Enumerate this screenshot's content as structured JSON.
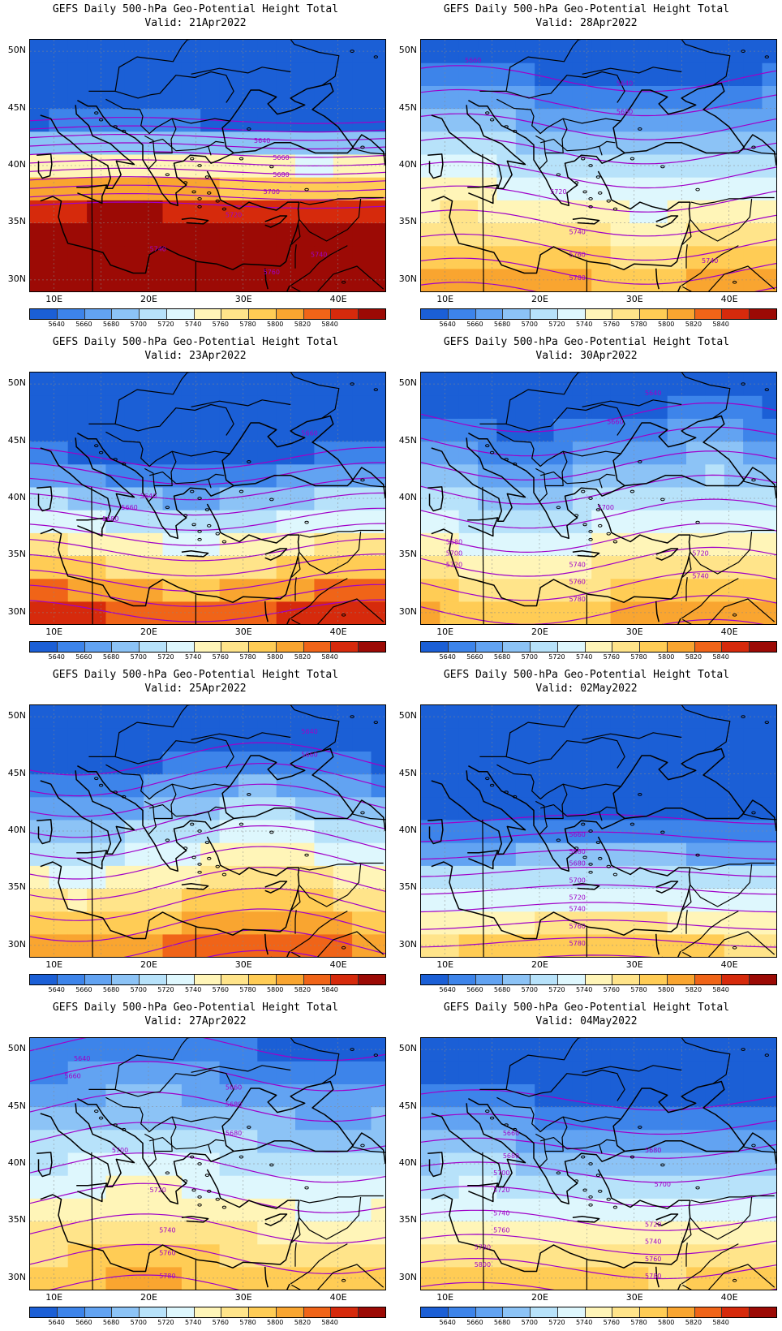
{
  "colors": {
    "bands": [
      "#1b5fd6",
      "#3d84ea",
      "#62a3f2",
      "#8cc3f6",
      "#b7e2fa",
      "#def7fd",
      "#fff5b8",
      "#ffe48a",
      "#ffcc55",
      "#f9a530",
      "#f06418",
      "#d62a0c",
      "#9c0a05"
    ],
    "contour": "#a000c8",
    "coast": "#000000"
  },
  "colorbar_labels": [
    "5640",
    "5660",
    "5680",
    "5700",
    "5720",
    "5740",
    "5760",
    "5780",
    "5800",
    "5820",
    "5840"
  ],
  "lat_labels": [
    "50N",
    "45N",
    "40N",
    "35N",
    "30N"
  ],
  "lon_labels": [
    "10E",
    "20E",
    "30E",
    "40E"
  ],
  "panels": [
    {
      "line1": "GEFS Daily 500-hPa Geo-Potential Height Total",
      "line2": "Valid: 21Apr2022",
      "field": {
        "base": 5625,
        "lat0": 44.5,
        "slope": 27,
        "wave": 1.2,
        "labels": [
          [
            "5640",
            32,
            42
          ],
          [
            "5660",
            34,
            40.5
          ],
          [
            "5680",
            34,
            39
          ],
          [
            "5700",
            33,
            37.5
          ],
          [
            "5720",
            29,
            35.5
          ],
          [
            "5740",
            21,
            32.5
          ],
          [
            "5760",
            33,
            30.5
          ],
          [
            "5740",
            38,
            32
          ]
        ]
      }
    },
    {
      "line1": "GEFS Daily 500-hPa Geo-Potential Height Total",
      "line2": "Valid: 28Apr2022",
      "field": {
        "base": 5660,
        "lat0": 45.5,
        "slope": 9.5,
        "wave": 1.8,
        "labels": [
          [
            "5660",
            13,
            49
          ],
          [
            "5640",
            29,
            47
          ],
          [
            "5680",
            29,
            44.5
          ],
          [
            "5720",
            22,
            37.5
          ],
          [
            "5740",
            24,
            34
          ],
          [
            "5760",
            24,
            32
          ],
          [
            "5780",
            24,
            30
          ],
          [
            "5740",
            38,
            31.5
          ]
        ]
      }
    },
    {
      "line1": "GEFS Daily 500-hPa Geo-Potential Height Total",
      "line2": "Valid: 23Apr2022",
      "field": {
        "base": 5640,
        "lat0": 43.5,
        "slope": 15,
        "wave": 2.4,
        "labels": [
          [
            "5660",
            37,
            45.5
          ],
          [
            "5640",
            20,
            40
          ],
          [
            "5660",
            18,
            39
          ],
          [
            "5680",
            16,
            38
          ]
        ]
      }
    },
    {
      "line1": "GEFS Daily 500-hPa Geo-Potential Height Total",
      "line2": "Valid: 30Apr2022",
      "field": {
        "base": 5655,
        "lat0": 45.5,
        "slope": 9.5,
        "wave": 2.0,
        "labels": [
          [
            "5640",
            32,
            49
          ],
          [
            "5660",
            28,
            46.5
          ],
          [
            "5700",
            27,
            39
          ],
          [
            "5680",
            11,
            36
          ],
          [
            "5700",
            11,
            35
          ],
          [
            "5720",
            11,
            34
          ],
          [
            "5740",
            24,
            34
          ],
          [
            "5760",
            24,
            32.5
          ],
          [
            "5780",
            24,
            31
          ],
          [
            "5720",
            37,
            35
          ],
          [
            "5740",
            37,
            33
          ]
        ]
      }
    },
    {
      "line1": "GEFS Daily 500-hPa Geo-Potential Height Total",
      "line2": "Valid: 25Apr2022",
      "field": {
        "base": 5638,
        "lat0": 46.5,
        "slope": 11,
        "wave": 2.6,
        "labels": [
          [
            "5640",
            37,
            48.5
          ],
          [
            "5660",
            37,
            46.5
          ]
        ]
      }
    },
    {
      "line1": "GEFS Daily 500-hPa Geo-Potential Height Total",
      "line2": "Valid: 02May2022",
      "field": {
        "base": 5660,
        "lat0": 39.5,
        "slope": 13,
        "wave": 0.9,
        "labels": [
          [
            "5660",
            24,
            39.5
          ],
          [
            "5680",
            24,
            38
          ],
          [
            "5680",
            24,
            37
          ],
          [
            "5700",
            24,
            35.5
          ],
          [
            "5720",
            24,
            34
          ],
          [
            "5740",
            24,
            33
          ],
          [
            "5760",
            24,
            31.5
          ],
          [
            "5780",
            24,
            30
          ]
        ]
      }
    },
    {
      "line1": "GEFS Daily 500-hPa Geo-Potential Height Total",
      "line2": "Valid: 27Apr2022",
      "field": {
        "base": 5650,
        "lat0": 49,
        "slope": 7.5,
        "wave": 1.6,
        "labels": [
          [
            "5640",
            13,
            49
          ],
          [
            "5660",
            12,
            47.5
          ],
          [
            "5660",
            29,
            46.5
          ],
          [
            "5680",
            29,
            45
          ],
          [
            "5680",
            29,
            42.5
          ],
          [
            "5700",
            17,
            41
          ],
          [
            "5720",
            21,
            37.5
          ],
          [
            "5740",
            22,
            34
          ],
          [
            "5760",
            22,
            32
          ],
          [
            "5780",
            22,
            30
          ]
        ]
      }
    },
    {
      "line1": "GEFS Daily 500-hPa Geo-Potential Height Total",
      "line2": "Valid: 04May2022",
      "field": {
        "base": 5655,
        "lat0": 44,
        "slope": 9.5,
        "wave": 1.4,
        "labels": [
          [
            "5660",
            17,
            42.5
          ],
          [
            "5680",
            17,
            40.5
          ],
          [
            "5700",
            16,
            39
          ],
          [
            "5720",
            16,
            37.5
          ],
          [
            "5740",
            16,
            35.5
          ],
          [
            "5760",
            16,
            34
          ],
          [
            "5780",
            14,
            32.5
          ],
          [
            "5800",
            14,
            31
          ],
          [
            "5680",
            32,
            41
          ],
          [
            "5700",
            33,
            38
          ],
          [
            "5720",
            32,
            34.5
          ],
          [
            "5740",
            32,
            33
          ],
          [
            "5760",
            32,
            31.5
          ],
          [
            "5780",
            32,
            30
          ]
        ]
      }
    }
  ]
}
